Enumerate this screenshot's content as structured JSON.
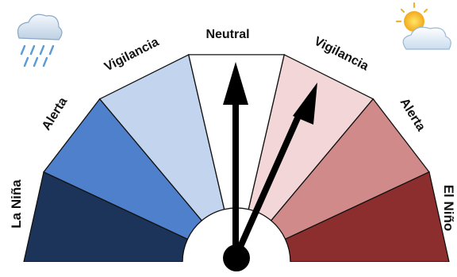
{
  "gauge": {
    "segments": [
      {
        "id": "la-nina",
        "label": "La Niña",
        "color": "#1c3459"
      },
      {
        "id": "alerta-l",
        "label": "Alerta",
        "color": "#4f80cc"
      },
      {
        "id": "vigil-l",
        "label": "Vigilancia",
        "color": "#c3d4ee"
      },
      {
        "id": "neutral",
        "label": "Neutral",
        "color": "#ffffff"
      },
      {
        "id": "vigil-r",
        "label": "Vigilancia",
        "color": "#f2d6d8"
      },
      {
        "id": "alerta-r",
        "label": "Alerta",
        "color": "#d08a8a"
      },
      {
        "id": "el-nino",
        "label": "El Niño",
        "color": "#8c2e2e"
      }
    ],
    "pointers": [
      "neutral",
      "vigil-r"
    ]
  },
  "icons": {
    "left": "rain-cloud-icon",
    "right": "sun-cloud-icon"
  }
}
